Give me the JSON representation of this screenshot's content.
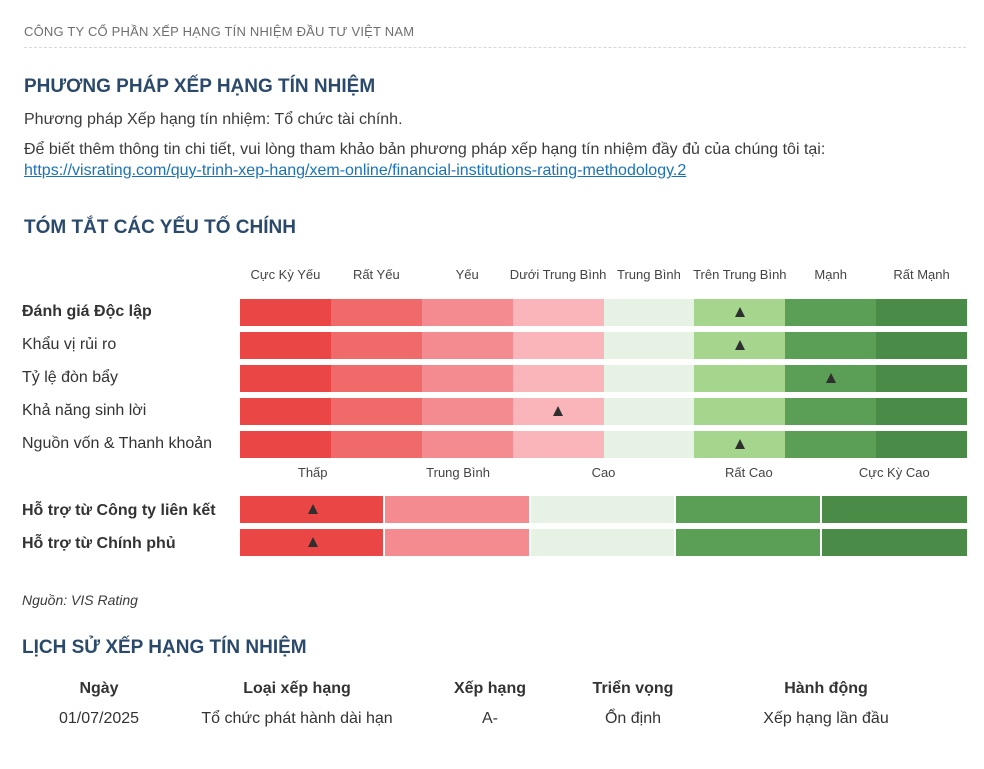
{
  "company_name": "CÔNG TY CỔ PHẦN XẾP HẠNG TÍN NHIỆM ĐẦU TƯ VIỆT NAM",
  "methodology": {
    "heading": "PHƯƠNG PHÁP XẾP HẠNG TÍN NHIỆM",
    "line1": "Phương pháp Xếp hạng tín nhiệm: Tổ chức tài chính.",
    "line2": "Để biết thêm thông tin chi tiết, vui lòng tham khảo bản phương pháp xếp hạng tín nhiệm đầy đủ của chúng tôi tại:",
    "link": "https://visrating.com/quy-trinh-xep-hang/xem-online/financial-institutions-rating-methodology.2"
  },
  "summary": {
    "heading": "TÓM TẮT CÁC YẾU TỐ CHÍNH",
    "scale_headers": [
      "Cực Kỳ Yếu",
      "Rất Yếu",
      "Yếu",
      "Dưới Trung Bình",
      "Trung Bình",
      "Trên Trung Bình",
      "Mạnh",
      "Rất Mạnh"
    ],
    "scale_colors": [
      "#eb4646",
      "#f06a6a",
      "#f48b90",
      "#f9b5ba",
      "#e6f3e4",
      "#a6d68d",
      "#5a9f55",
      "#4a8c47"
    ],
    "rows": [
      {
        "label": "Đánh giá Độc lập",
        "bold": true,
        "marker_index": 5
      },
      {
        "label": "Khẩu vị rủi ro",
        "bold": false,
        "marker_index": 5
      },
      {
        "label": "Tỷ lệ đòn bẩy",
        "bold": false,
        "marker_index": 6
      },
      {
        "label": "Khả năng sinh lời",
        "bold": false,
        "marker_index": 3
      },
      {
        "label": "Nguồn vốn & Thanh khoản",
        "bold": false,
        "marker_index": 5
      }
    ],
    "support_headers": [
      "Thấp",
      "Trung Bình",
      "Cao",
      "Rất Cao",
      "Cực Kỳ Cao"
    ],
    "support_colors": [
      "#eb4646",
      "#f48b90",
      "#e6f3e4",
      "#5a9f55",
      "#4a8c47"
    ],
    "support_rows": [
      {
        "label": "Hỗ trợ từ Công ty liên kết",
        "bold": true,
        "marker_index": 0
      },
      {
        "label": "Hỗ trợ từ Chính phủ",
        "bold": true,
        "marker_index": 0
      }
    ],
    "source": "Nguồn: VIS Rating"
  },
  "history": {
    "heading": "LỊCH SỬ XẾP HẠNG TÍN NHIỆM",
    "columns": [
      "Ngày",
      "Loại xếp hạng",
      "Xếp hạng",
      "Triển vọng",
      "Hành động"
    ],
    "rows": [
      [
        "01/07/2025",
        "Tổ chức phát hành dài hạn",
        "A-",
        "Ổn định",
        "Xếp hạng lần đầu"
      ]
    ]
  }
}
